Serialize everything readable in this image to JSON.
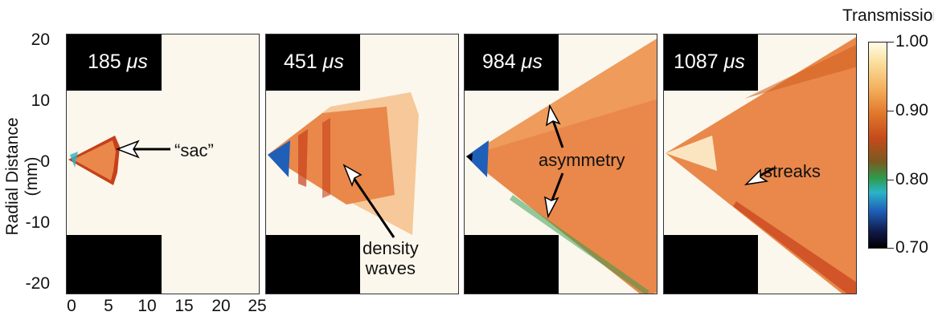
{
  "axis": {
    "ylabel": "Radial Distance (mm)",
    "yticks": [
      "20",
      "10",
      "0",
      "-10",
      "-20"
    ],
    "xticks": [
      "0",
      "5",
      "10",
      "15",
      "20",
      "25"
    ]
  },
  "panels": [
    {
      "time_value": "185",
      "time_unit": "μs"
    },
    {
      "time_value": "451",
      "time_unit": "μs"
    },
    {
      "time_value": "984",
      "time_unit": "μs"
    },
    {
      "time_value": "1087",
      "time_unit": "μs"
    }
  ],
  "annotations": {
    "sac": "“sac”",
    "density_waves_1": "density",
    "density_waves_2": "waves",
    "asymmetry": "asymmetry",
    "streaks": "streaks"
  },
  "colorbar": {
    "title": "Transmission",
    "ticks": [
      "1.00",
      "0.90",
      "0.80",
      "0.70"
    ]
  },
  "colors": {
    "spray_core": "#e9884a",
    "spray_edge": "#c6401a",
    "background": "#fbf7ec"
  }
}
